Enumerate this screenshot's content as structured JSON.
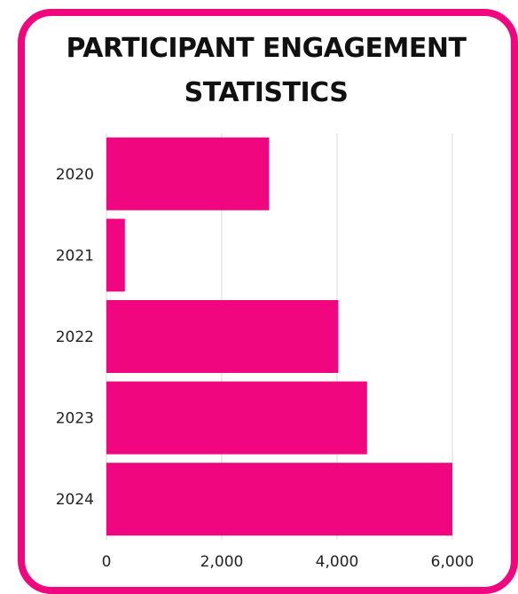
{
  "chart_data": {
    "type": "bar",
    "orientation": "horizontal",
    "title": "PARTICIPANT ENGAGEMENT STATISTICS",
    "categories": [
      "2020",
      "2021",
      "2022",
      "2023",
      "2024"
    ],
    "values": [
      2820,
      320,
      4020,
      4520,
      6000
    ],
    "x_ticks": [
      "0",
      "2,000",
      "4,000",
      "6,000"
    ],
    "xlim": [
      0,
      6000
    ],
    "grid": true,
    "bar_color": "#f0077f",
    "frame_color": "#f0077f"
  }
}
